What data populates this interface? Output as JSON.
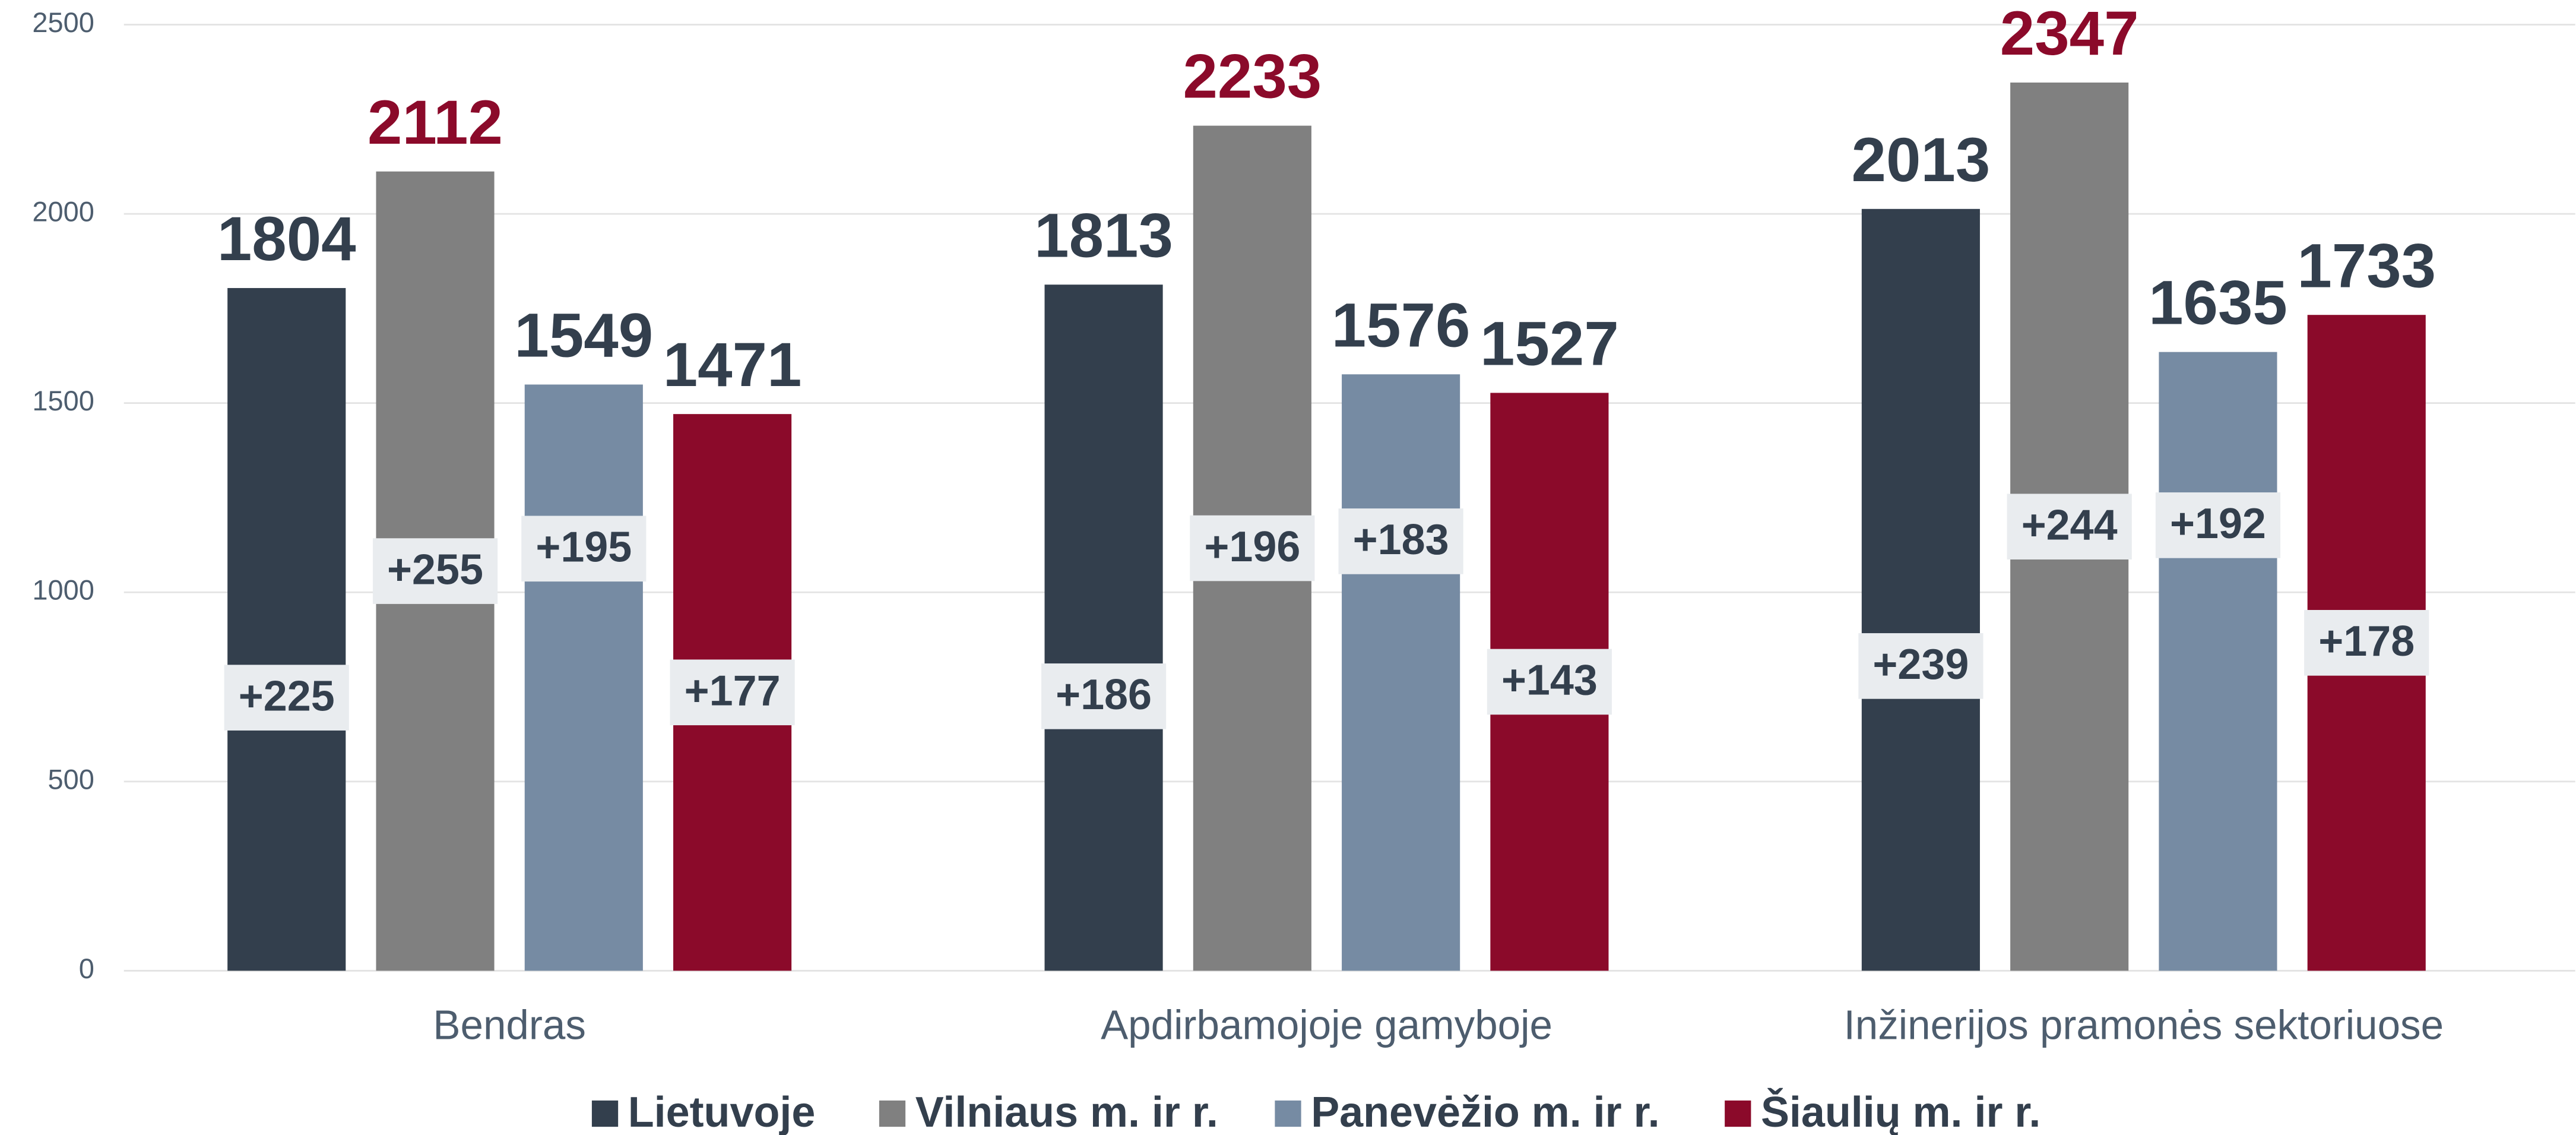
{
  "chart_data": {
    "type": "bar",
    "categories": [
      "Bendras",
      "Apdirbamojoje gamyboje",
      "Inžinerijos pramonės sektoriuose"
    ],
    "series": [
      {
        "name": "Lietuvoje",
        "color": "#333f4d",
        "label_color": "#333f4d",
        "values": [
          1804,
          1813,
          2013
        ],
        "annotations": [
          "+225",
          "+186",
          "+239"
        ]
      },
      {
        "name": "Vilniaus m. ir r.",
        "color": "#808080",
        "label_color": "#8b0a2a",
        "values": [
          2112,
          2233,
          2347
        ],
        "annotations": [
          "+255",
          "+196",
          "+244"
        ]
      },
      {
        "name": "Panevėžio m. ir r.",
        "color": "#768ba3",
        "label_color": "#333f4d",
        "values": [
          1549,
          1576,
          1635
        ],
        "annotations": [
          "+195",
          "+183",
          "+192"
        ]
      },
      {
        "name": "Šiaulių m. ir r.",
        "color": "#8b0a2a",
        "label_color": "#333f4d",
        "values": [
          1471,
          1527,
          1733
        ],
        "annotations": [
          "+177",
          "+143",
          "+178"
        ]
      }
    ],
    "ylim": [
      0,
      2500
    ],
    "yticks": [
      0,
      500,
      1000,
      1500,
      2000,
      2500
    ],
    "grid": true,
    "legend": "bottom"
  }
}
